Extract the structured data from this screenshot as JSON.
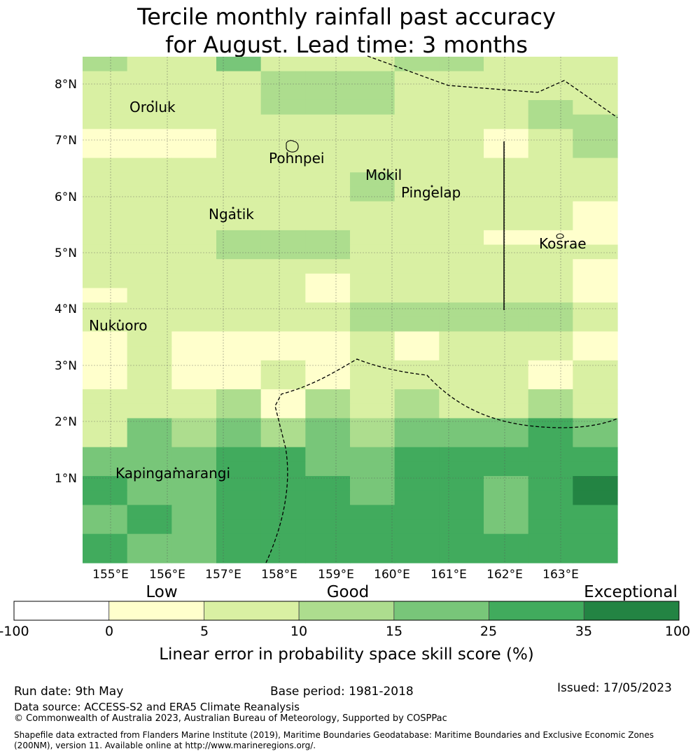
{
  "title": {
    "line1": "Tercile monthly rainfall past accuracy",
    "line2": "for August. Lead time: 3 months"
  },
  "map": {
    "lat_labels": [
      "8°N",
      "7°N",
      "6°N",
      "5°N",
      "4°N",
      "3°N",
      "2°N",
      "1°N"
    ],
    "lon_labels": [
      "155°E",
      "156°E",
      "157°E",
      "158°E",
      "159°E",
      "160°E",
      "161°E",
      "162°E",
      "163°E"
    ],
    "places": [
      "Oroluk",
      "Pohnpei",
      "Mokil",
      "Pingelap",
      "Ngatik",
      "Kosrae",
      "Nukuoro",
      "Kapingamarangi"
    ]
  },
  "colorbar": {
    "category_labels": [
      "Low",
      "Good",
      "Exceptional"
    ],
    "ticks": [
      "-100",
      "0",
      "5",
      "10",
      "15",
      "25",
      "35",
      "100"
    ],
    "colors": [
      "#ffffff",
      "#ffffcc",
      "#d9f0a3",
      "#addd8e",
      "#78c679",
      "#41ab5d",
      "#238443"
    ],
    "label": "Linear error in probability space skill score (%)"
  },
  "grid": {
    "levels_legend": "0=white(-100..0), 1=0-5, 2=5-10, 3=10-15, 4=15-25, 5=25-35, 6=35-100",
    "rows": [
      [
        3,
        2,
        2,
        4,
        2,
        2,
        2,
        3,
        3,
        2,
        2,
        2
      ],
      [
        2,
        2,
        2,
        2,
        3,
        3,
        3,
        2,
        2,
        2,
        2,
        2
      ],
      [
        2,
        2,
        2,
        2,
        3,
        3,
        3,
        2,
        2,
        2,
        2,
        2
      ],
      [
        2,
        2,
        2,
        2,
        3,
        3,
        3,
        2,
        2,
        2,
        3,
        2
      ],
      [
        2,
        2,
        2,
        2,
        2,
        2,
        2,
        2,
        2,
        2,
        3,
        3
      ],
      [
        1,
        1,
        1,
        2,
        2,
        2,
        2,
        2,
        2,
        1,
        2,
        3
      ],
      [
        1,
        1,
        1,
        2,
        2,
        2,
        2,
        2,
        2,
        1,
        2,
        3
      ],
      [
        2,
        2,
        2,
        2,
        2,
        2,
        2,
        2,
        2,
        2,
        2,
        2
      ],
      [
        2,
        2,
        2,
        2,
        2,
        2,
        3,
        2,
        2,
        2,
        2,
        2
      ],
      [
        2,
        2,
        2,
        2,
        2,
        2,
        3,
        2,
        2,
        2,
        2,
        2
      ],
      [
        2,
        2,
        2,
        2,
        2,
        2,
        2,
        2,
        2,
        2,
        2,
        1
      ],
      [
        2,
        2,
        2,
        2,
        2,
        2,
        2,
        2,
        2,
        2,
        2,
        1
      ],
      [
        2,
        2,
        2,
        3,
        3,
        3,
        2,
        2,
        2,
        1,
        1,
        1
      ],
      [
        2,
        2,
        2,
        3,
        3,
        3,
        2,
        2,
        2,
        2,
        2,
        2
      ],
      [
        2,
        2,
        2,
        2,
        2,
        2,
        2,
        2,
        2,
        2,
        2,
        1
      ],
      [
        2,
        2,
        2,
        2,
        2,
        1,
        2,
        2,
        2,
        2,
        2,
        1
      ],
      [
        1,
        2,
        2,
        2,
        2,
        1,
        2,
        2,
        2,
        2,
        2,
        1
      ],
      [
        2,
        2,
        2,
        2,
        2,
        2,
        3,
        3,
        3,
        3,
        3,
        2
      ],
      [
        2,
        2,
        2,
        2,
        2,
        2,
        3,
        3,
        3,
        3,
        3,
        2
      ],
      [
        1,
        2,
        1,
        1,
        1,
        1,
        2,
        1,
        2,
        2,
        2,
        1
      ],
      [
        1,
        2,
        1,
        1,
        1,
        1,
        2,
        1,
        2,
        2,
        2,
        1
      ],
      [
        1,
        2,
        1,
        1,
        2,
        1,
        2,
        2,
        2,
        2,
        1,
        2
      ],
      [
        1,
        2,
        1,
        1,
        2,
        1,
        2,
        2,
        2,
        2,
        1,
        2
      ],
      [
        2,
        2,
        2,
        3,
        1,
        3,
        2,
        3,
        2,
        2,
        3,
        2
      ],
      [
        2,
        2,
        2,
        3,
        1,
        3,
        2,
        3,
        2,
        2,
        3,
        2
      ],
      [
        2,
        4,
        3,
        4,
        3,
        4,
        3,
        4,
        4,
        4,
        5,
        4
      ],
      [
        2,
        4,
        3,
        4,
        3,
        4,
        3,
        4,
        4,
        4,
        5,
        4
      ],
      [
        4,
        4,
        4,
        5,
        5,
        4,
        4,
        5,
        5,
        5,
        5,
        5
      ],
      [
        4,
        4,
        4,
        5,
        5,
        4,
        4,
        5,
        5,
        5,
        5,
        5
      ],
      [
        5,
        4,
        4,
        5,
        5,
        5,
        4,
        5,
        5,
        4,
        5,
        6
      ],
      [
        5,
        4,
        4,
        5,
        5,
        5,
        4,
        5,
        5,
        4,
        5,
        6
      ],
      [
        4,
        5,
        4,
        5,
        5,
        5,
        5,
        5,
        5,
        4,
        5,
        5
      ],
      [
        4,
        5,
        4,
        5,
        5,
        5,
        5,
        5,
        5,
        4,
        5,
        5
      ],
      [
        5,
        4,
        4,
        5,
        5,
        5,
        5,
        5,
        5,
        5,
        5,
        5
      ],
      [
        5,
        4,
        4,
        5,
        5,
        5,
        5,
        5,
        5,
        5,
        5,
        5
      ]
    ]
  },
  "footer": {
    "run_date": "Run date: 9th May",
    "base_period": "Base period: 1981-2018",
    "issued": "Issued: 17/05/2023",
    "data_source": "Data source: ACCESS-S2 and ERA5 Climate Reanalysis",
    "copyright": "© Commonwealth of Australia 2023, Australian Bureau of Meteorology, Supported by COSPPac",
    "shapefile_line1": "Shapefile data extracted from Flanders Marine Institute (2019), Maritime Boundaries Geodatabase: Maritime Boundaries and Exclusive Economic Zones",
    "shapefile_line2": "(200NM), version 11. Available online at http://www.marineregions.org/."
  }
}
